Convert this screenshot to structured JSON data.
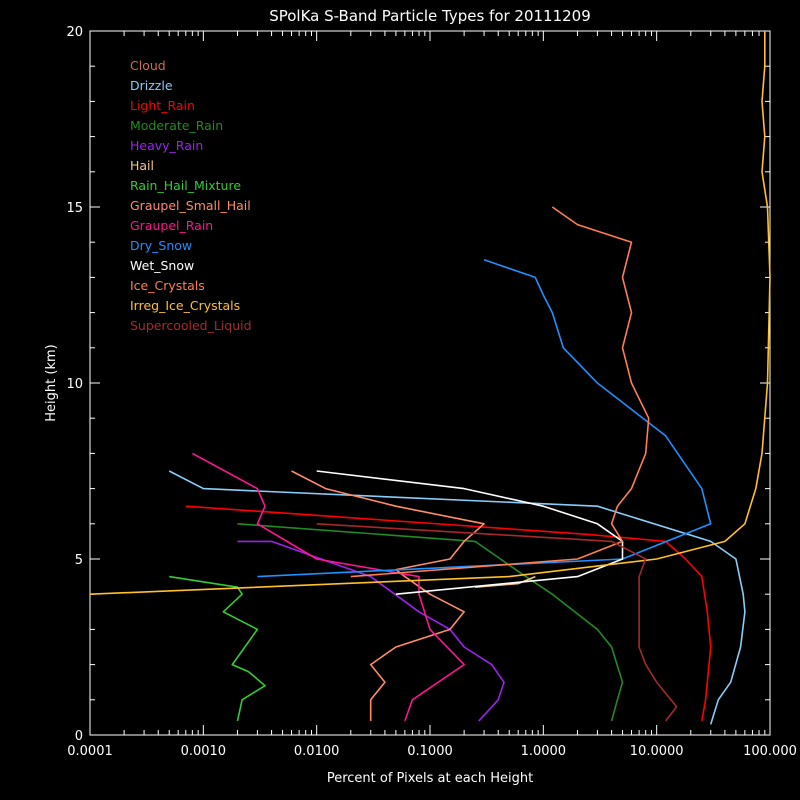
{
  "chart_data": {
    "type": "line",
    "title": "SPolKa S-Band Particle Types for 20111209",
    "xlabel": "Percent of Pixels at each Height",
    "ylabel": "Height (km)",
    "x_scale": "log",
    "xlim": [
      0.0001,
      100.0
    ],
    "ylim": [
      0,
      20
    ],
    "xticklabels": [
      "0.0001",
      "0.0010",
      "0.0100",
      "0.1000",
      "1.0000",
      "10.0000",
      "100.000"
    ],
    "yticklabels": [
      "0",
      "5",
      "10",
      "15",
      "20"
    ],
    "legend_position": "top-left",
    "series": [
      {
        "name": "Cloud",
        "color": "#d2694c",
        "points": []
      },
      {
        "name": "Drizzle",
        "color": "#87cefa",
        "points": [
          [
            30,
            0.3
          ],
          [
            35,
            1
          ],
          [
            45,
            1.5
          ],
          [
            55,
            2.5
          ],
          [
            60,
            3.5
          ],
          [
            58,
            4
          ],
          [
            50,
            5
          ],
          [
            30,
            5.5
          ],
          [
            3,
            6.5
          ],
          [
            0.001,
            7
          ],
          [
            0.0005,
            7.5
          ]
        ]
      },
      {
        "name": "Light_Rain",
        "color": "#ff0000",
        "points": [
          [
            25,
            0.4
          ],
          [
            27,
            1
          ],
          [
            30,
            2.5
          ],
          [
            28,
            3.5
          ],
          [
            25,
            4.5
          ],
          [
            18,
            5
          ],
          [
            12,
            5.5
          ],
          [
            2.5,
            5.7
          ],
          [
            0.0007,
            6.5
          ]
        ]
      },
      {
        "name": "Moderate_Rain",
        "color": "#228b22",
        "points": [
          [
            4,
            0.4
          ],
          [
            4.5,
            1
          ],
          [
            5,
            1.5
          ],
          [
            4,
            2.5
          ],
          [
            3,
            3
          ],
          [
            1.2,
            4
          ],
          [
            0.7,
            4.5
          ],
          [
            0.25,
            5.5
          ],
          [
            0.002,
            6
          ]
        ]
      },
      {
        "name": "Heavy_Rain",
        "color": "#a020f0",
        "points": [
          [
            0.27,
            0.4
          ],
          [
            0.4,
            1
          ],
          [
            0.45,
            1.5
          ],
          [
            0.35,
            2
          ],
          [
            0.2,
            2.5
          ],
          [
            0.15,
            3
          ],
          [
            0.08,
            3.5
          ],
          [
            0.03,
            4.5
          ],
          [
            0.004,
            5.5
          ],
          [
            0.002,
            5.5
          ]
        ]
      },
      {
        "name": "Hail",
        "color": "#f5c38a",
        "points": [
          [
            0.25,
            4.2
          ],
          [
            0.6,
            4.3
          ],
          [
            0.85,
            4.5
          ]
        ]
      },
      {
        "name": "Rain_Hail_Mixture",
        "color": "#32cd32",
        "points": [
          [
            0.002,
            0.4
          ],
          [
            0.0022,
            1
          ],
          [
            0.0035,
            1.4
          ],
          [
            0.0025,
            1.8
          ],
          [
            0.0018,
            2
          ],
          [
            0.003,
            3
          ],
          [
            0.0015,
            3.5
          ],
          [
            0.0022,
            4
          ],
          [
            0.002,
            4.2
          ],
          [
            0.0005,
            4.5
          ]
        ]
      },
      {
        "name": "Graupel_Small_Hail",
        "color": "#ff8c69",
        "points": [
          [
            0.03,
            0.4
          ],
          [
            0.03,
            1
          ],
          [
            0.04,
            1.5
          ],
          [
            0.03,
            2
          ],
          [
            0.05,
            2.5
          ],
          [
            0.15,
            3
          ],
          [
            0.2,
            3.5
          ],
          [
            0.1,
            4
          ],
          [
            0.06,
            4.5
          ],
          [
            0.05,
            4.7
          ],
          [
            0.15,
            5
          ],
          [
            0.2,
            5.5
          ],
          [
            0.3,
            6
          ],
          [
            0.05,
            6.5
          ],
          [
            0.012,
            7
          ],
          [
            0.006,
            7.5
          ]
        ]
      },
      {
        "name": "Graupel_Rain",
        "color": "#ff1493",
        "points": [
          [
            0.06,
            0.4
          ],
          [
            0.07,
            1
          ],
          [
            0.2,
            2
          ],
          [
            0.1,
            3
          ],
          [
            0.08,
            4
          ],
          [
            0.08,
            4.5
          ],
          [
            0.01,
            5
          ],
          [
            0.003,
            6
          ],
          [
            0.0035,
            6.5
          ],
          [
            0.003,
            7
          ],
          [
            0.0008,
            8
          ]
        ]
      },
      {
        "name": "Dry_Snow",
        "color": "#1e90ff",
        "points": [
          [
            0.003,
            4.5
          ],
          [
            5,
            5
          ],
          [
            30,
            6
          ],
          [
            25,
            7
          ],
          [
            12,
            8.5
          ],
          [
            3,
            10
          ],
          [
            1.5,
            11
          ],
          [
            1.2,
            12
          ],
          [
            1,
            12.5
          ],
          [
            0.85,
            13
          ],
          [
            0.3,
            13.5
          ]
        ]
      },
      {
        "name": "Wet_Snow",
        "color": "#ffffff",
        "points": [
          [
            0.05,
            4
          ],
          [
            2,
            4.5
          ],
          [
            5,
            5
          ],
          [
            5,
            5.5
          ],
          [
            3,
            6
          ],
          [
            1,
            6.5
          ],
          [
            0.2,
            7
          ],
          [
            0.01,
            7.5
          ]
        ]
      },
      {
        "name": "Ice_Crystals",
        "color": "#ff7f50",
        "points": [
          [
            0.02,
            4.5
          ],
          [
            2,
            5
          ],
          [
            5,
            5.5
          ],
          [
            4,
            6
          ],
          [
            4.5,
            6.5
          ],
          [
            6,
            7
          ],
          [
            8,
            8
          ],
          [
            8.5,
            9
          ],
          [
            6,
            10
          ],
          [
            5,
            11
          ],
          [
            6,
            12
          ],
          [
            5,
            13
          ],
          [
            6,
            14
          ],
          [
            2,
            14.5
          ],
          [
            1.2,
            15
          ]
        ]
      },
      {
        "name": "Irreg_Ice_Crystals",
        "color": "#ffc125",
        "points": [
          [
            0.0001,
            4
          ],
          [
            0.5,
            4.5
          ],
          [
            10,
            5
          ],
          [
            40,
            5.5
          ],
          [
            60,
            6
          ],
          [
            75,
            7
          ],
          [
            85,
            8
          ],
          [
            95,
            10
          ],
          [
            100,
            13
          ],
          [
            95,
            15
          ],
          [
            85,
            16
          ],
          [
            90,
            17
          ],
          [
            85,
            18
          ],
          [
            90,
            19
          ],
          [
            90,
            20
          ]
        ]
      },
      {
        "name": "Supercooled_Liquid",
        "color": "#a52a2a",
        "points": [
          [
            12,
            0.4
          ],
          [
            15,
            0.8
          ],
          [
            10,
            1.5
          ],
          [
            8,
            2
          ],
          [
            7,
            2.5
          ],
          [
            7,
            4.5
          ],
          [
            8,
            5
          ],
          [
            4,
            5.5
          ],
          [
            0.01,
            6
          ]
        ]
      }
    ]
  }
}
